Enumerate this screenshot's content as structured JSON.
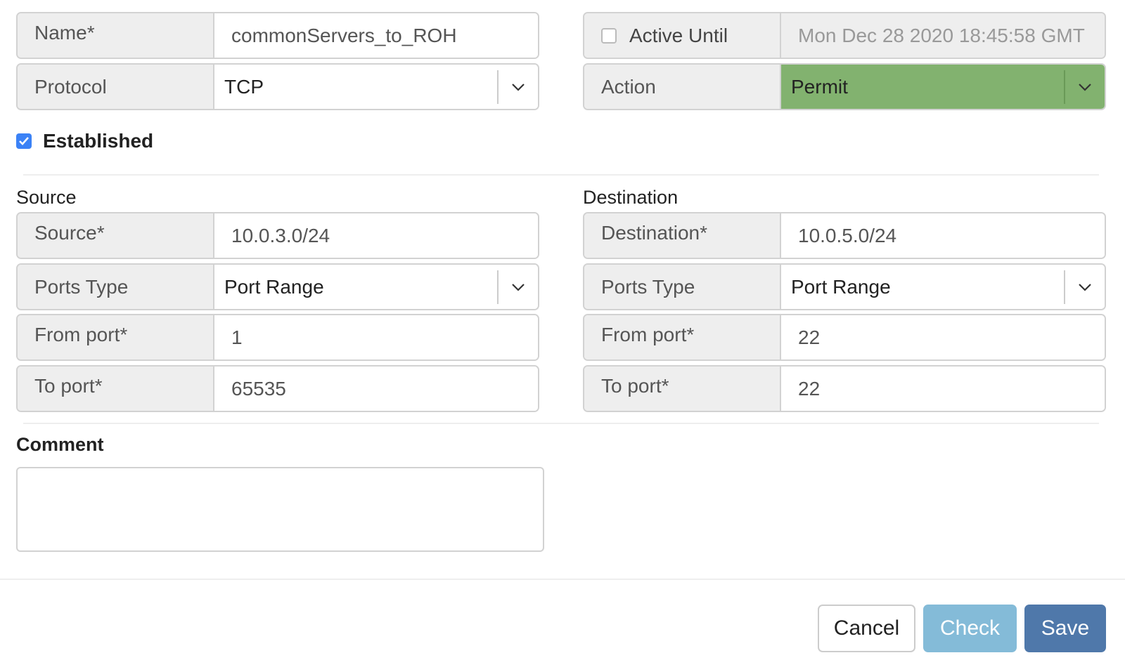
{
  "general": {
    "name": {
      "label": "Name*",
      "value": "commonServers_to_ROH"
    },
    "protocol": {
      "label": "Protocol",
      "value": "TCP"
    },
    "active_until": {
      "label": "Active Until",
      "value": "Mon Dec 28 2020 18:45:58 GMT",
      "checked": false
    },
    "action": {
      "label": "Action",
      "value": "Permit",
      "color": "#82b26f"
    },
    "established": {
      "label": "Established",
      "checked": true
    }
  },
  "source": {
    "heading": "Source",
    "source": {
      "label": "Source*",
      "value": "10.0.3.0/24"
    },
    "ports_type": {
      "label": "Ports Type",
      "value": "Port Range"
    },
    "from_port": {
      "label": "From port*",
      "value": "1"
    },
    "to_port": {
      "label": "To port*",
      "value": "65535"
    }
  },
  "destination": {
    "heading": "Destination",
    "destination": {
      "label": "Destination*",
      "value": "10.0.5.0/24"
    },
    "ports_type": {
      "label": "Ports Type",
      "value": "Port Range"
    },
    "from_port": {
      "label": "From port*",
      "value": "22"
    },
    "to_port": {
      "label": "To port*",
      "value": "22"
    }
  },
  "comment": {
    "label": "Comment",
    "value": ""
  },
  "footer": {
    "cancel": "Cancel",
    "check": "Check",
    "save": "Save"
  }
}
